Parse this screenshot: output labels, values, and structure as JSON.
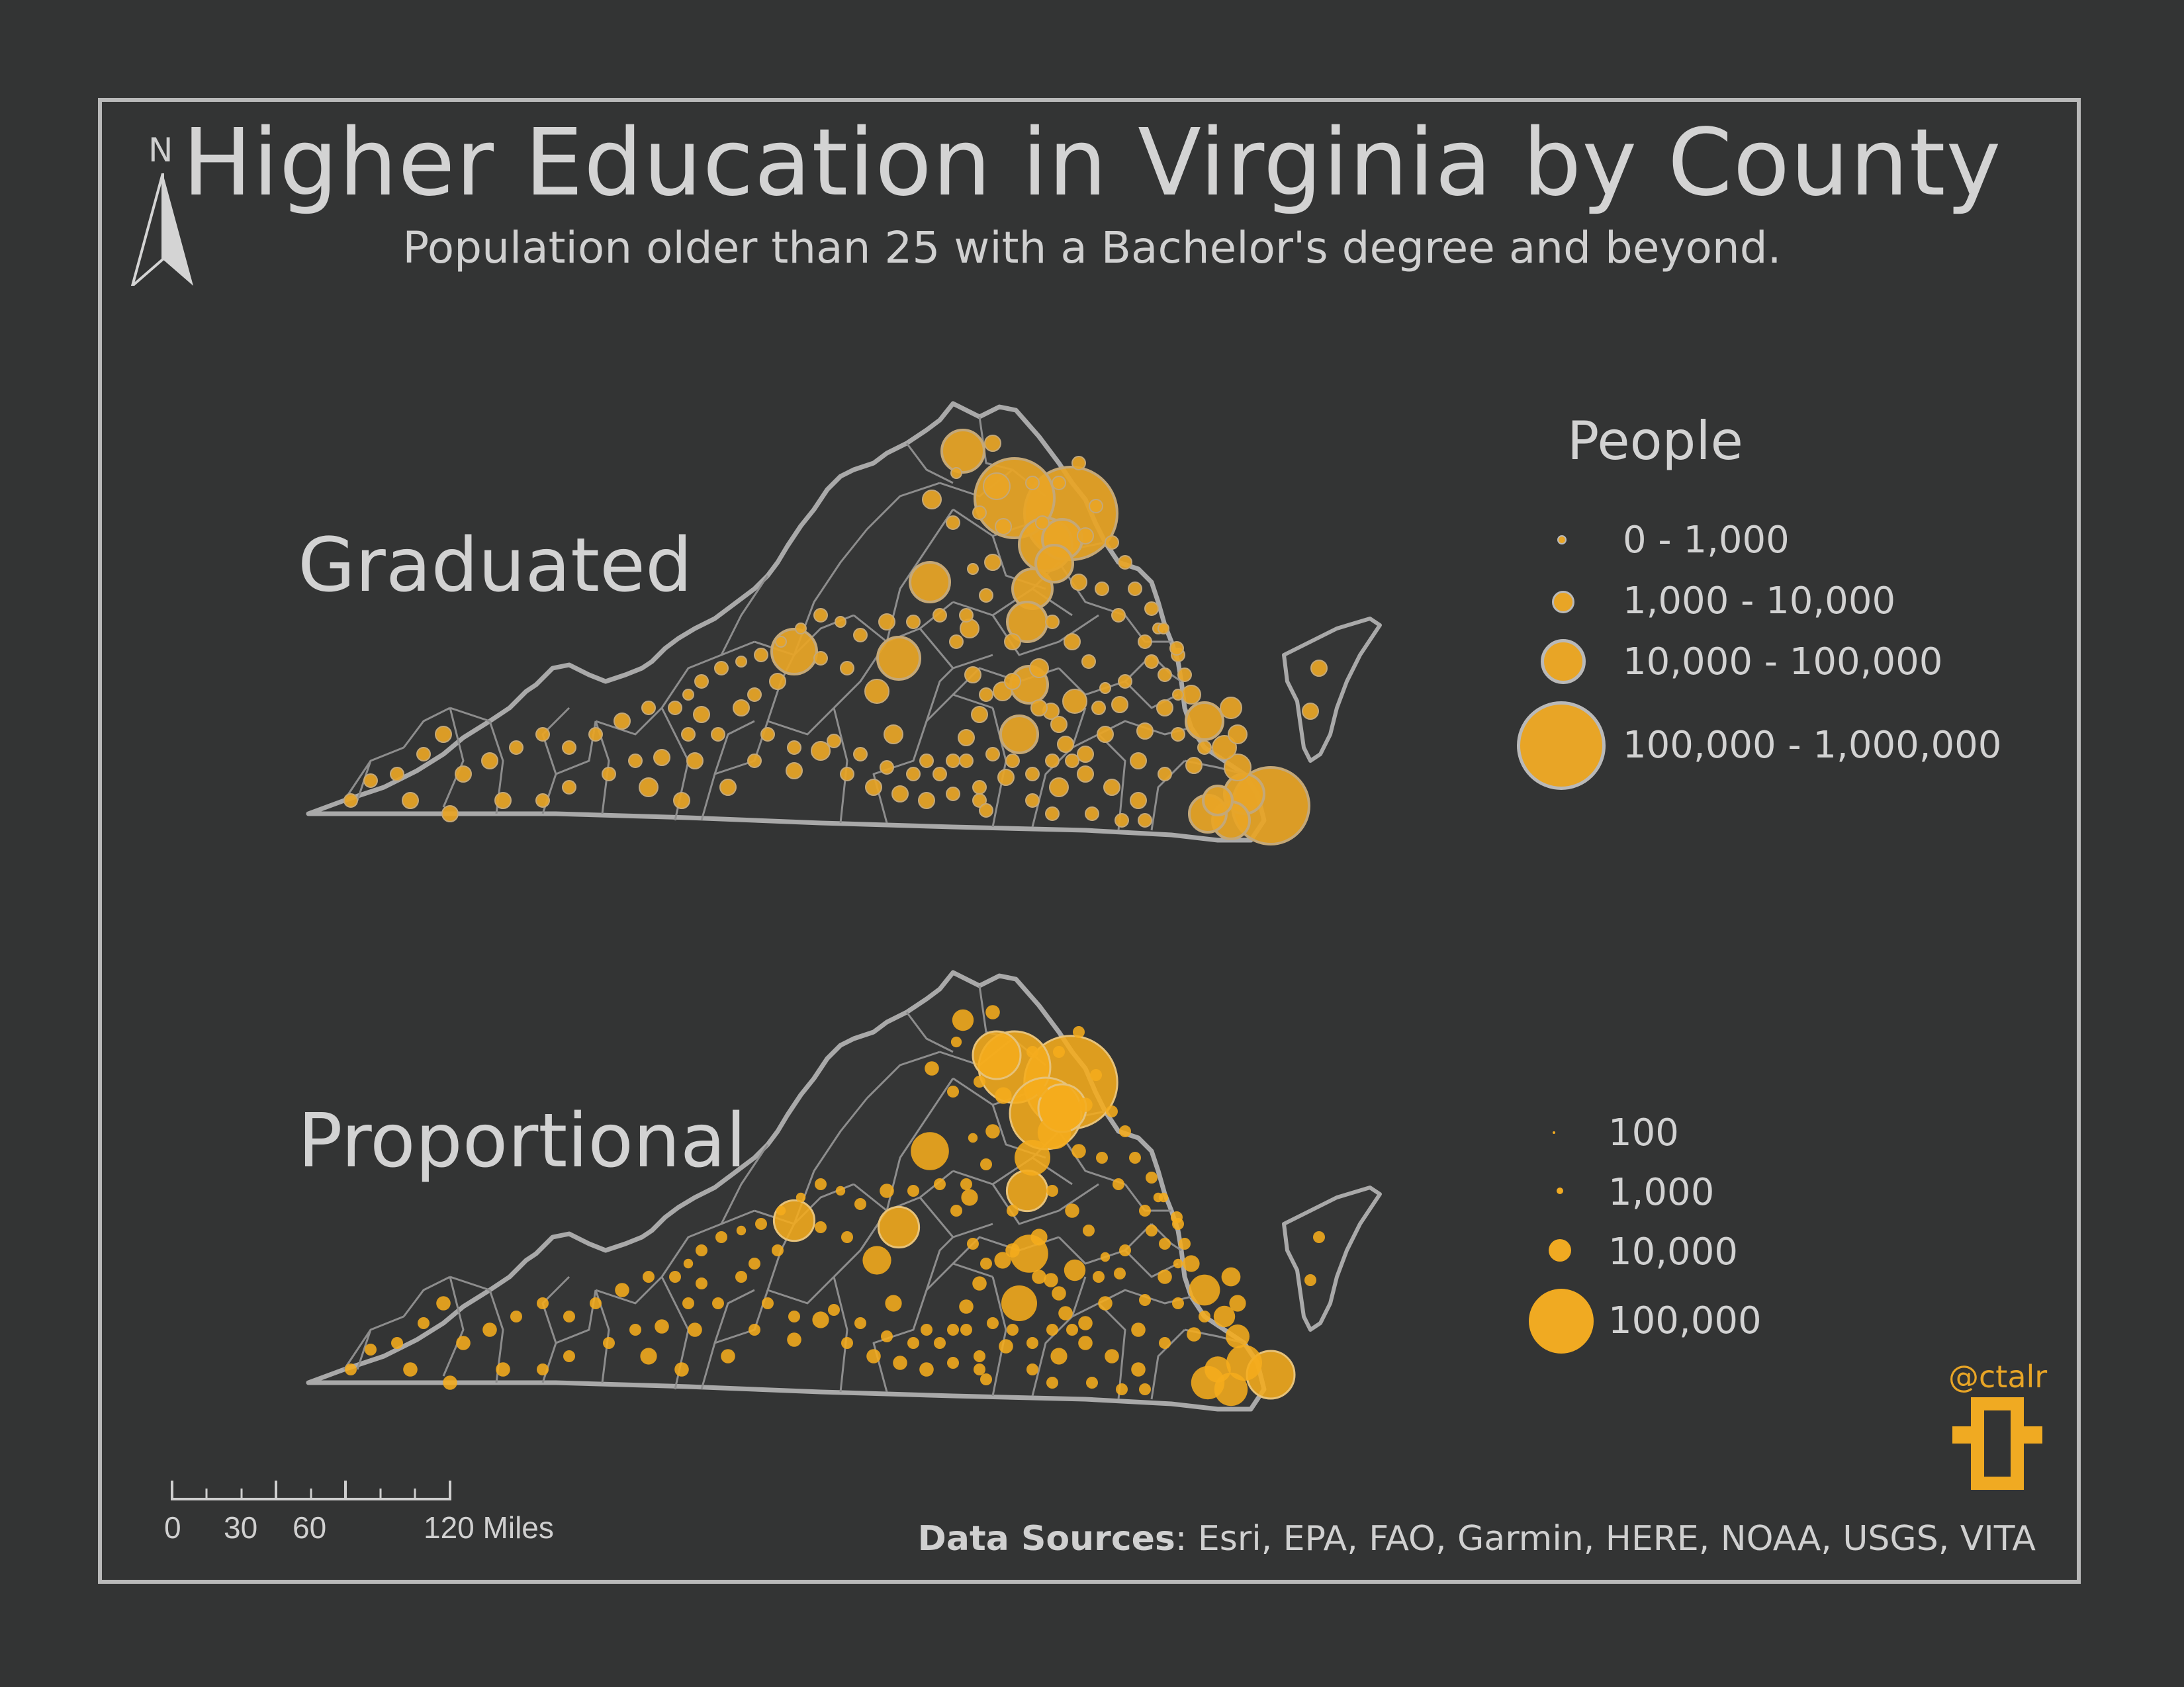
{
  "title": "Higher Education in Virginia by County",
  "subtitle": "Population older than 25 with a Bachelor's degree and beyond.",
  "north_arrow": {
    "letter": "N",
    "icon": "north-arrow-icon"
  },
  "maps": [
    {
      "label": "Graduated"
    },
    {
      "label": "Proportional"
    }
  ],
  "legend": {
    "title": "People",
    "graduated": [
      "0 - 1,000",
      "1,000 - 10,000",
      "10,000 - 100,000",
      "100,000 - 1,000,000"
    ],
    "proportional": [
      "100",
      "1,000",
      "10,000",
      "100,000"
    ]
  },
  "scale_bar": {
    "ticks": [
      "0",
      "30",
      "60",
      "120 Miles"
    ]
  },
  "credit": {
    "handle": "@ctalr"
  },
  "sources": {
    "label": "Data Sources",
    "text": ": Esri, EPA, FAO, Garmin, HERE, NOAA, USGS, VITA"
  },
  "colors": {
    "background": "#333434",
    "symbol": "#e8a526",
    "outline": "#b9b9b9",
    "text": "#d4d4d4"
  }
}
